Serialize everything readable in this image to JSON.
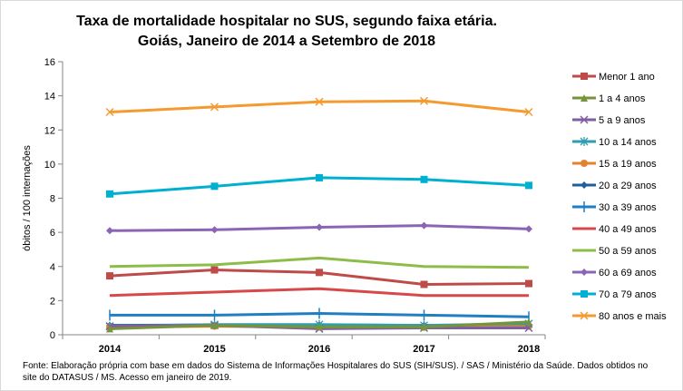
{
  "chart_data": {
    "type": "line",
    "title": [
      "Taxa de mortalidade hospitalar no SUS, segundo faixa etária.",
      "Goiás, Janeiro de 2014 a Setembro de 2018"
    ],
    "xlabel": "",
    "ylabel": "óbitos / 100 internações",
    "x": [
      "2014",
      "2015",
      "2016",
      "2017",
      "2018"
    ],
    "ylim": [
      0,
      16
    ],
    "yticks": [
      "0",
      "2",
      "4",
      "6",
      "8",
      "10",
      "12",
      "14",
      "16"
    ],
    "grid": false,
    "legend": "right",
    "series": [
      {
        "name": "Menor 1 ano",
        "color": "#be4b48",
        "marker": "square",
        "values": [
          3.45,
          3.8,
          3.65,
          2.95,
          3.0
        ]
      },
      {
        "name": "1 a 4 anos",
        "color": "#77933c",
        "marker": "triangle",
        "values": [
          0.35,
          0.55,
          0.45,
          0.45,
          0.75
        ]
      },
      {
        "name": "5 a 9 anos",
        "color": "#7f5f9f",
        "marker": "x",
        "values": [
          0.5,
          0.55,
          0.35,
          0.4,
          0.4
        ]
      },
      {
        "name": "10 a 14 anos",
        "color": "#2f9fb0",
        "marker": "star",
        "values": [
          0.5,
          0.6,
          0.6,
          0.55,
          0.65
        ]
      },
      {
        "name": "15 a 19 anos",
        "color": "#e58230",
        "marker": "circle",
        "values": [
          0.45,
          0.5,
          0.45,
          0.45,
          0.5
        ]
      },
      {
        "name": "20 a 29 anos",
        "color": "#1f5f9a",
        "marker": "diamond",
        "values": [
          0.55,
          0.58,
          0.58,
          0.55,
          0.55
        ]
      },
      {
        "name": "30 a 39 anos",
        "color": "#1f7fc2",
        "marker": "plus",
        "values": [
          1.15,
          1.15,
          1.25,
          1.15,
          1.05
        ]
      },
      {
        "name": "40 a 49 anos",
        "color": "#d94848",
        "marker": "none",
        "values": [
          2.3,
          2.5,
          2.7,
          2.3,
          2.3
        ]
      },
      {
        "name": "50 a 59 anos",
        "color": "#8ebc48",
        "marker": "none",
        "values": [
          4.0,
          4.1,
          4.5,
          4.0,
          3.95
        ]
      },
      {
        "name": "60 a 69 anos",
        "color": "#8c64b4",
        "marker": "diamond",
        "values": [
          6.1,
          6.15,
          6.3,
          6.4,
          6.2
        ]
      },
      {
        "name": "70 a 79 anos",
        "color": "#00b0d0",
        "marker": "square",
        "values": [
          8.25,
          8.7,
          9.2,
          9.1,
          8.75
        ]
      },
      {
        "name": "80 anos e mais",
        "color": "#f59a30",
        "marker": "x",
        "values": [
          13.05,
          13.35,
          13.65,
          13.7,
          13.05
        ]
      }
    ]
  },
  "source": "Fonte: Elaboração própria com base em dados do Sistema de Informações Hospitalares do SUS (SIH/SUS). / SAS / Ministério da Saúde. Dados obtidos no site do DATASUS / MS. Acesso em janeiro de 2019."
}
